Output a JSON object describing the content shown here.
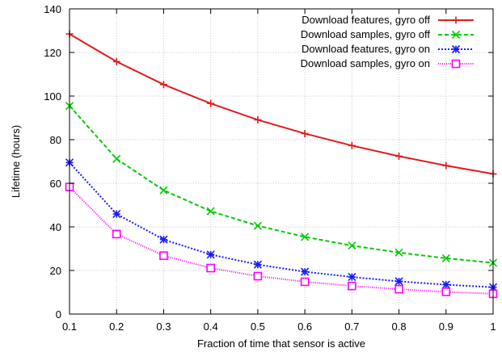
{
  "chart_data": {
    "type": "line",
    "title": "",
    "xlabel": "Fraction of time that sensor is active",
    "ylabel": "Lifetime (hours)",
    "xlim": [
      0.1,
      1.0
    ],
    "ylim": [
      0,
      140
    ],
    "xticks": [
      "0.1",
      "0.2",
      "0.3",
      "0.4",
      "0.5",
      "0.6",
      "0.7",
      "0.8",
      "0.9",
      "1"
    ],
    "yticks": [
      "0",
      "20",
      "40",
      "60",
      "80",
      "100",
      "120",
      "140"
    ],
    "grid": true,
    "legend_position": "top-right",
    "x": [
      0.1,
      0.2,
      0.3,
      0.4,
      0.5,
      0.6,
      0.7,
      0.8,
      0.9,
      1.0
    ],
    "series": [
      {
        "name": "Download features, gyro off",
        "values": [
          128.5,
          115.8,
          105.3,
          96.6,
          89.1,
          82.8,
          77.3,
          72.4,
          68.1,
          64.3
        ],
        "color": "#e41a1c",
        "marker": "plus",
        "dash": "solid"
      },
      {
        "name": "Download samples, gyro off",
        "values": [
          95.5,
          71.2,
          56.8,
          47.2,
          40.5,
          35.4,
          31.4,
          28.2,
          25.6,
          23.5
        ],
        "color": "#00cc00",
        "marker": "cross",
        "dash": "dashed"
      },
      {
        "name": "Download features, gyro on",
        "values": [
          69.5,
          45.9,
          34.2,
          27.3,
          22.7,
          19.4,
          17.0,
          15.0,
          13.5,
          12.3
        ],
        "color": "#1a1aff",
        "marker": "star",
        "dash": "dotted"
      },
      {
        "name": "Download samples, gyro on",
        "values": [
          58.3,
          36.7,
          26.8,
          21.1,
          17.4,
          14.8,
          12.9,
          11.4,
          10.2,
          9.3
        ],
        "color": "#ff00ff",
        "marker": "square",
        "dash": "finedotted"
      }
    ]
  }
}
